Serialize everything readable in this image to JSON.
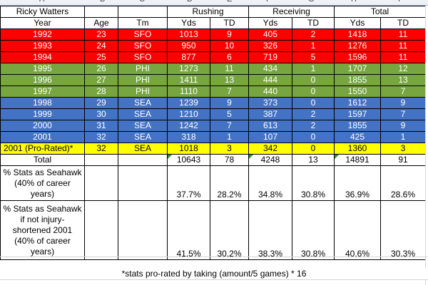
{
  "column_letters": [
    "A",
    "B",
    "C",
    "D",
    "E",
    "F",
    "G",
    "H",
    "I"
  ],
  "header": {
    "player": "Ricky Watters",
    "rushing": "Rushing",
    "receiving": "Receiving",
    "total": "Total"
  },
  "subheader": {
    "year": "Year",
    "age": "Age",
    "tm": "Tm",
    "rush_yds": "Yds",
    "rush_td": "TD",
    "rec_yds": "Yds",
    "rec_td": "TD",
    "tot_yds": "Yds",
    "tot_td": "TD"
  },
  "rows": [
    {
      "year": "1992",
      "age": "23",
      "tm": "SFO",
      "rush_yds": "1013",
      "rush_td": "9",
      "rec_yds": "405",
      "rec_td": "2",
      "tot_yds": "1418",
      "tot_td": "11",
      "color": "red"
    },
    {
      "year": "1993",
      "age": "24",
      "tm": "SFO",
      "rush_yds": "950",
      "rush_td": "10",
      "rec_yds": "326",
      "rec_td": "1",
      "tot_yds": "1276",
      "tot_td": "11",
      "color": "red"
    },
    {
      "year": "1994",
      "age": "25",
      "tm": "SFO",
      "rush_yds": "877",
      "rush_td": "6",
      "rec_yds": "719",
      "rec_td": "5",
      "tot_yds": "1596",
      "tot_td": "11",
      "color": "red"
    },
    {
      "year": "1995",
      "age": "26",
      "tm": "PHI",
      "rush_yds": "1273",
      "rush_td": "11",
      "rec_yds": "434",
      "rec_td": "1",
      "tot_yds": "1707",
      "tot_td": "12",
      "color": "green"
    },
    {
      "year": "1996",
      "age": "27",
      "tm": "PHI",
      "rush_yds": "1411",
      "rush_td": "13",
      "rec_yds": "444",
      "rec_td": "0",
      "tot_yds": "1855",
      "tot_td": "13",
      "color": "green"
    },
    {
      "year": "1997",
      "age": "28",
      "tm": "PHI",
      "rush_yds": "1110",
      "rush_td": "7",
      "rec_yds": "440",
      "rec_td": "0",
      "tot_yds": "1550",
      "tot_td": "7",
      "color": "green"
    },
    {
      "year": "1998",
      "age": "29",
      "tm": "SEA",
      "rush_yds": "1239",
      "rush_td": "9",
      "rec_yds": "373",
      "rec_td": "0",
      "tot_yds": "1612",
      "tot_td": "9",
      "color": "blue"
    },
    {
      "year": "1999",
      "age": "30",
      "tm": "SEA",
      "rush_yds": "1210",
      "rush_td": "5",
      "rec_yds": "387",
      "rec_td": "2",
      "tot_yds": "1597",
      "tot_td": "7",
      "color": "blue"
    },
    {
      "year": "2000",
      "age": "31",
      "tm": "SEA",
      "rush_yds": "1242",
      "rush_td": "7",
      "rec_yds": "613",
      "rec_td": "2",
      "tot_yds": "1855",
      "tot_td": "9",
      "color": "blue"
    },
    {
      "year": "2001",
      "age": "32",
      "tm": "SEA",
      "rush_yds": "318",
      "rush_td": "1",
      "rec_yds": "107",
      "rec_td": "0",
      "tot_yds": "425",
      "tot_td": "1",
      "color": "blue"
    },
    {
      "year": "2001 (Pro-Rated)*",
      "age": "32",
      "tm": "SEA",
      "rush_yds": "1018",
      "rush_td": "3",
      "rec_yds": "342",
      "rec_td": "0",
      "tot_yds": "1360",
      "tot_td": "3",
      "color": "yellow"
    }
  ],
  "total_row": {
    "label": "Total",
    "rush_yds": "10643",
    "rush_td": "78",
    "rec_yds": "4248",
    "rec_td": "13",
    "tot_yds": "14891",
    "tot_td": "91"
  },
  "pct_rows": [
    {
      "label": "% Stats as Seahawk (40% of career years)",
      "rush_yds": "37.7%",
      "rush_td": "28.2%",
      "rec_yds": "34.8%",
      "rec_td": "30.8%",
      "tot_yds": "36.9%",
      "tot_td": "28.6%"
    },
    {
      "label": "% Stats as Seahawk if not injury-shortened 2001 (40% of career years)",
      "rush_yds": "41.5%",
      "rush_td": "30.2%",
      "rec_yds": "38.3%",
      "rec_td": "30.8%",
      "tot_yds": "40.6%",
      "tot_td": "30.3%"
    }
  ],
  "footnote": "*stats pro-rated by taking (amount/5 games) * 16",
  "colors": {
    "red": "#ff0000",
    "green": "#77a540",
    "blue": "#4472c4",
    "yellow": "#ffff00",
    "indicator": "#2e8b3d"
  }
}
